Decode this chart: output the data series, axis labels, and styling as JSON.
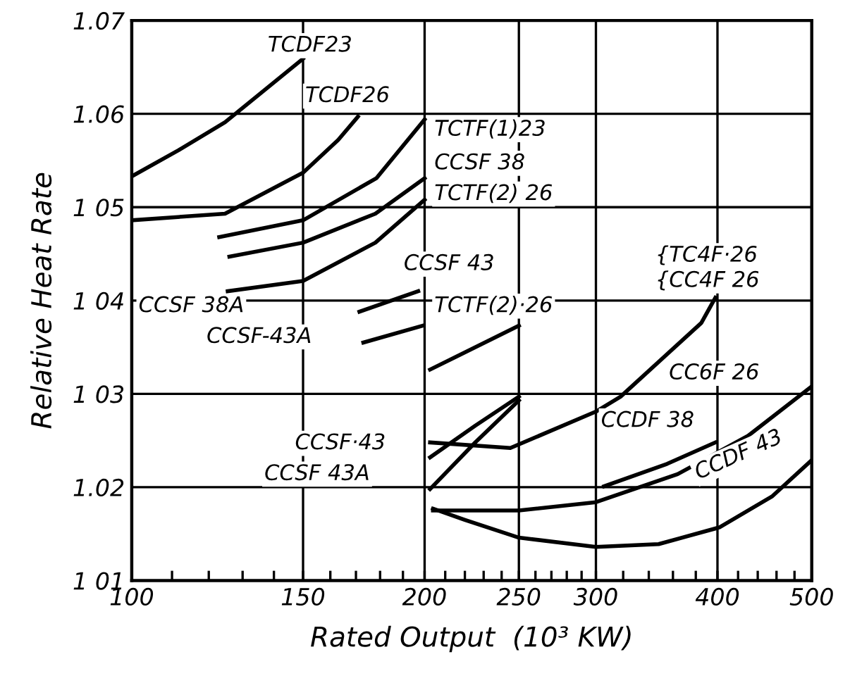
{
  "chart_data": {
    "type": "line",
    "xlabel": "Rated Output  (10³ KW)",
    "ylabel": "Relative Heat Rate",
    "log": "x",
    "grid": true,
    "marker": "none",
    "line_style": "solid",
    "xlim": [
      100,
      500
    ],
    "ylim": [
      1.01,
      1.07
    ],
    "xticks": [
      100,
      {
        "value": 110,
        "label": null
      },
      {
        "value": 120,
        "label": null
      },
      {
        "value": 130,
        "label": null
      },
      {
        "value": 140,
        "label": null
      },
      150,
      {
        "value": 160,
        "label": null
      },
      {
        "value": 170,
        "label": null
      },
      {
        "value": 180,
        "label": null
      },
      {
        "value": 190,
        "label": null
      },
      200,
      {
        "value": 210,
        "label": null
      },
      {
        "value": 220,
        "label": null
      },
      {
        "value": 230,
        "label": null
      },
      {
        "value": 240,
        "label": null
      },
      250,
      {
        "value": 260,
        "label": null
      },
      {
        "value": 270,
        "label": null
      },
      {
        "value": 280,
        "label": null
      },
      {
        "value": 290,
        "label": null
      },
      300,
      {
        "value": 320,
        "label": null
      },
      {
        "value": 340,
        "label": null
      },
      {
        "value": 360,
        "label": null
      },
      {
        "value": 380,
        "label": null
      },
      400,
      {
        "value": 420,
        "label": null
      },
      {
        "value": 440,
        "label": null
      },
      {
        "value": 460,
        "label": null
      },
      {
        "value": 480,
        "label": null
      },
      500
    ],
    "yticks": [
      {
        "value": 1.01,
        "label": "1 01"
      },
      {
        "value": 1.02,
        "label": "1.02"
      },
      {
        "value": 1.03,
        "label": "1 03"
      },
      {
        "value": 1.04,
        "label": "1 04"
      },
      {
        "value": 1.05,
        "label": "1 05"
      },
      1.06,
      1.07
    ],
    "series": [
      {
        "color": "#000000",
        "x": [
          100,
          111.7,
          124.7,
          150
        ],
        "values": [
          1.0533,
          1.0561,
          1.0591,
          1.0659
        ]
      },
      {
        "color": "#000000",
        "x": [
          100,
          124.7,
          150,
          163,
          170.8
        ],
        "values": [
          1.0486,
          1.0493,
          1.0537,
          1.0572,
          1.0597
        ]
      },
      {
        "color": "#000000",
        "x": [
          123,
          150,
          178.4,
          200
        ],
        "values": [
          1.0468,
          1.0486,
          1.0531,
          1.0594
        ]
      },
      {
        "color": "#000000",
        "x": [
          126,
          150,
          178,
          200
        ],
        "values": [
          1.0447,
          1.0462,
          1.0493,
          1.0531
        ]
      },
      {
        "color": "#000000",
        "x": [
          125.5,
          150,
          178,
          200
        ],
        "values": [
          1.041,
          1.0421,
          1.0462,
          1.0508
        ]
      },
      {
        "color": "#000000",
        "x": [
          171.4,
          197
        ],
        "values": [
          1.0388,
          1.041
        ]
      },
      {
        "color": "#000000",
        "x": [
          173,
          199
        ],
        "values": [
          1.0355,
          1.0373
        ]
      },
      {
        "color": "#000000",
        "x": [
          202.6,
          250
        ],
        "values": [
          1.0326,
          1.0373
        ]
      },
      {
        "color": "#000000",
        "x": [
          202.6,
          245,
          300,
          318,
          385,
          398
        ],
        "values": [
          1.0248,
          1.0242,
          1.0281,
          1.0297,
          1.0376,
          1.0403
        ]
      },
      {
        "color": "#000000",
        "x": [
          202.6,
          225.5,
          250
        ],
        "values": [
          1.0232,
          1.0266,
          1.0297
        ]
      },
      {
        "color": "#000000",
        "x": [
          202.6,
          225.5,
          250
        ],
        "values": [
          1.0198,
          1.0248,
          1.0293
        ]
      },
      {
        "color": "#000000",
        "x": [
          204,
          250,
          300,
          364,
          430,
          500
        ],
        "values": [
          1.0175,
          1.0175,
          1.0184,
          1.0214,
          1.0255,
          1.0308
        ]
      },
      {
        "color": "#000000",
        "x": [
          204,
          220,
          250,
          300,
          348,
          402,
          455,
          500
        ],
        "values": [
          1.0177,
          1.0165,
          1.0146,
          1.0136,
          1.0139,
          1.0157,
          1.019,
          1.0229
        ]
      },
      {
        "color": "#000000",
        "x": [
          305.8,
          355,
          398
        ],
        "values": [
          1.0201,
          1.0225,
          1.0248
        ]
      }
    ],
    "annotations": [
      "TCDF23",
      "TCDF26",
      "TCTF(1)23",
      "CCSF 38",
      "TCTF(2) 26",
      "CCSF 43",
      "TCTF(2)·26",
      "CCSF 38A",
      "CCSF-43A",
      "{TC4F·26",
      "{CC4F 26",
      "CC6F 26",
      "CCDF 38",
      "CCDF 43",
      "CCSF·43",
      "CCSF 43A"
    ]
  }
}
